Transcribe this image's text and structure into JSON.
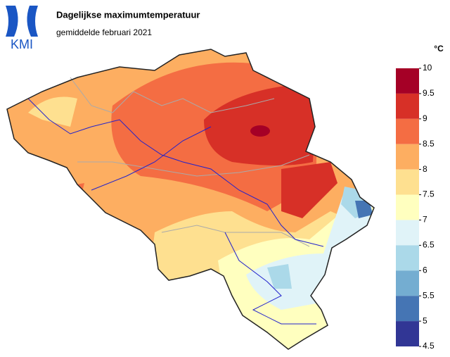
{
  "logo": {
    "text": "KMI"
  },
  "header": {
    "title": "Dagelijkse maximumtemperatuur",
    "subtitle": "gemiddelde februari 2021"
  },
  "legend": {
    "unit": "°C",
    "ticks": [
      10,
      9.5,
      9,
      8.5,
      8,
      7.5,
      7,
      6.5,
      6,
      5.5,
      5,
      4.5
    ],
    "colors": [
      "#a50026",
      "#d73027",
      "#f46d43",
      "#fdae61",
      "#fee090",
      "#ffffbf",
      "#e0f3f8",
      "#abd9e9",
      "#74add1",
      "#4575b4",
      "#313695"
    ]
  }
}
